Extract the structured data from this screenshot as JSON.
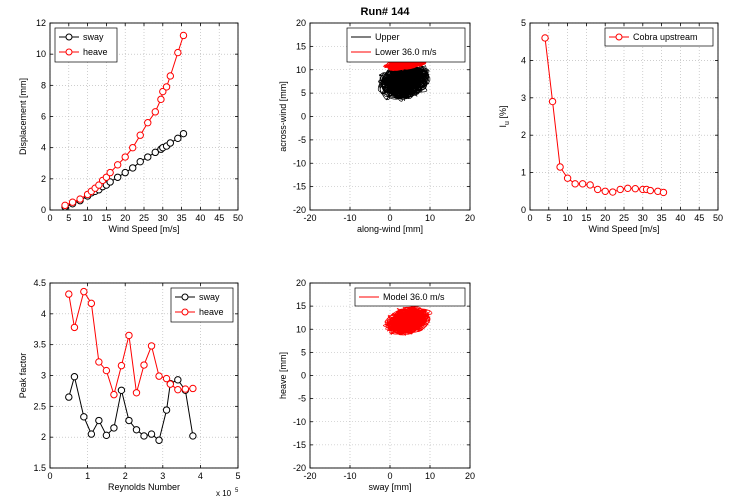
{
  "figure_title": "Run# 144",
  "chart_data": [
    {
      "id": "p1",
      "type": "line",
      "xlabel": "Wind Speed [m/s]",
      "ylabel": "Displacement [mm]",
      "xlim": [
        0,
        50
      ],
      "ylim": [
        0,
        12
      ],
      "xticks": [
        0,
        5,
        10,
        15,
        20,
        25,
        30,
        35,
        40,
        45,
        50
      ],
      "yticks": [
        0,
        2,
        4,
        6,
        8,
        10,
        12
      ],
      "grid": true,
      "legend": "top-left",
      "series": [
        {
          "name": "sway",
          "color": "#000000",
          "marker": "circle",
          "x": [
            4,
            6,
            8,
            10,
            11,
            12,
            13,
            14,
            15,
            16,
            18,
            20,
            22,
            24,
            26,
            28,
            29.5,
            30,
            31,
            32,
            34,
            35.5
          ],
          "y": [
            0.2,
            0.4,
            0.6,
            0.9,
            1.1,
            1.2,
            1.3,
            1.5,
            1.6,
            1.8,
            2.1,
            2.4,
            2.7,
            3.1,
            3.4,
            3.7,
            3.9,
            4.0,
            4.1,
            4.3,
            4.6,
            4.9
          ]
        },
        {
          "name": "heave",
          "color": "#ff0000",
          "marker": "circle",
          "x": [
            4,
            6,
            8,
            10,
            11,
            12,
            13,
            14,
            15,
            16,
            18,
            20,
            22,
            24,
            26,
            28,
            29.5,
            30,
            31,
            32,
            34,
            35.5
          ],
          "y": [
            0.3,
            0.5,
            0.7,
            1.0,
            1.2,
            1.4,
            1.6,
            1.9,
            2.1,
            2.4,
            2.9,
            3.4,
            4.0,
            4.8,
            5.6,
            6.3,
            7.1,
            7.6,
            7.9,
            8.6,
            10.1,
            11.2
          ]
        }
      ]
    },
    {
      "id": "p2",
      "type": "scatter",
      "xlabel": "along-wind [mm]",
      "ylabel": "across-wind [mm]",
      "xlim": [
        -20,
        20
      ],
      "ylim": [
        -20,
        20
      ],
      "xticks": [
        -20,
        -10,
        0,
        10,
        20
      ],
      "yticks": [
        -20,
        -15,
        -10,
        -5,
        0,
        5,
        10,
        15,
        20
      ],
      "grid": true,
      "legend": "top-right",
      "series": [
        {
          "name": "Upper",
          "color": "#000000",
          "center": [
            3.5,
            7.5
          ],
          "spread": [
            7.5,
            4.5
          ]
        },
        {
          "name": "Lower 36.0 m/s",
          "color": "#ff0000",
          "center": [
            4.0,
            11.3
          ],
          "spread": [
            6.0,
            1.4
          ]
        }
      ]
    },
    {
      "id": "p3",
      "type": "line",
      "xlabel": "Wind Speed [m/s]",
      "ylabel": "I_u [%]",
      "ylabel_main": "I",
      "ylabel_sub": "u",
      "ylabel_rest": " [%]",
      "xlim": [
        0,
        50
      ],
      "ylim": [
        0,
        5
      ],
      "xticks": [
        0,
        5,
        10,
        15,
        20,
        25,
        30,
        35,
        40,
        45,
        50
      ],
      "yticks": [
        0,
        1,
        2,
        3,
        4,
        5
      ],
      "grid": true,
      "legend": "top-right",
      "series": [
        {
          "name": "Cobra upstream",
          "color": "#ff0000",
          "marker": "circle",
          "x": [
            4,
            6,
            8,
            10,
            12,
            14,
            16,
            18,
            20,
            22,
            24,
            26,
            28,
            30,
            31,
            32,
            34,
            35.5
          ],
          "y": [
            4.6,
            2.9,
            1.15,
            0.85,
            0.7,
            0.7,
            0.67,
            0.55,
            0.5,
            0.48,
            0.55,
            0.58,
            0.57,
            0.55,
            0.55,
            0.52,
            0.5,
            0.47
          ]
        }
      ]
    },
    {
      "id": "p4",
      "type": "line",
      "xlabel": "Reynolds Number",
      "ylabel": "Peak factor",
      "x_multiplier": "x 10",
      "x_multiplier_exp": "5",
      "xlim": [
        0,
        5
      ],
      "ylim": [
        1.5,
        4.5
      ],
      "xticks": [
        0,
        1,
        2,
        3,
        4,
        5
      ],
      "yticks": [
        1.5,
        2,
        2.5,
        3,
        3.5,
        4,
        4.5
      ],
      "grid": true,
      "legend": "top-right",
      "series": [
        {
          "name": "sway",
          "color": "#000000",
          "marker": "circle",
          "x": [
            0.5,
            0.65,
            0.9,
            1.1,
            1.3,
            1.5,
            1.7,
            1.9,
            2.1,
            2.3,
            2.5,
            2.7,
            2.9,
            3.1,
            3.2,
            3.4,
            3.6,
            3.8
          ],
          "y": [
            2.65,
            2.98,
            2.33,
            2.05,
            2.27,
            2.03,
            2.15,
            2.76,
            2.27,
            2.12,
            2.02,
            2.05,
            1.95,
            2.44,
            2.87,
            2.93,
            2.76,
            2.02
          ]
        },
        {
          "name": "heave",
          "color": "#ff0000",
          "marker": "circle",
          "x": [
            0.5,
            0.65,
            0.9,
            1.1,
            1.3,
            1.5,
            1.7,
            1.9,
            2.1,
            2.3,
            2.5,
            2.7,
            2.9,
            3.1,
            3.2,
            3.4,
            3.6,
            3.8
          ],
          "y": [
            4.32,
            3.78,
            4.36,
            4.17,
            3.22,
            3.08,
            2.69,
            3.16,
            3.65,
            2.72,
            3.17,
            3.48,
            2.99,
            2.95,
            2.86,
            2.77,
            2.78,
            2.79
          ]
        }
      ]
    },
    {
      "id": "p5",
      "type": "scatter",
      "xlabel": "sway [mm]",
      "ylabel": "heave [mm]",
      "xlim": [
        -20,
        20
      ],
      "ylim": [
        -20,
        20
      ],
      "xticks": [
        -20,
        -10,
        0,
        10,
        20
      ],
      "yticks": [
        -20,
        -15,
        -10,
        -5,
        0,
        5,
        10,
        15,
        20
      ],
      "grid": true,
      "legend": "top-right",
      "series": [
        {
          "name": "Model 36.0 m/s",
          "color": "#ff0000",
          "center": [
            4.5,
            11.8
          ],
          "spread": [
            6.5,
            3.4
          ]
        }
      ]
    }
  ]
}
